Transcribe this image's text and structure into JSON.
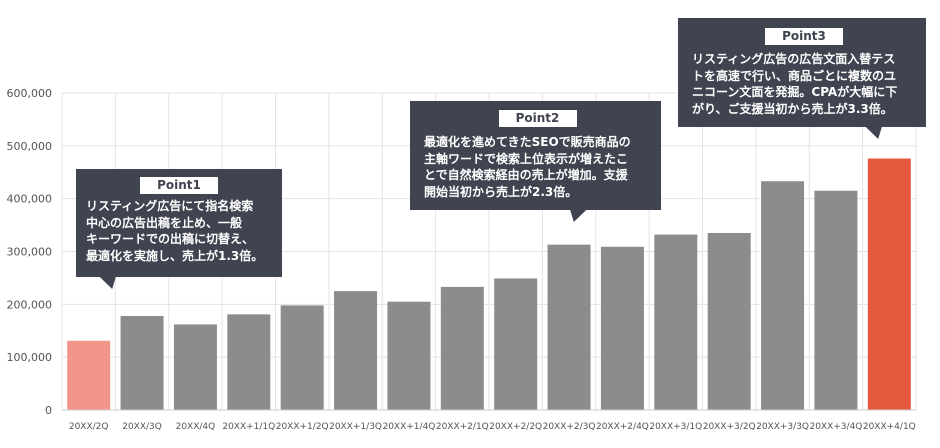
{
  "chart_data": {
    "type": "bar",
    "categories": [
      "20XX/2Q",
      "20XX/3Q",
      "20XX/4Q",
      "20XX+1/1Q",
      "20XX+1/2Q",
      "20XX+1/3Q",
      "20XX+1/4Q",
      "20XX+2/1Q",
      "20XX+2/2Q",
      "20XX+2/3Q",
      "20XX+2/4Q",
      "20XX+3/1Q",
      "20XX+3/2Q",
      "20XX+3/3Q",
      "20XX+3/4Q",
      "20XX+4/1Q"
    ],
    "values": [
      131000,
      178000,
      162000,
      181000,
      198000,
      225000,
      205000,
      233000,
      249000,
      313000,
      309000,
      332000,
      335000,
      433000,
      415000,
      476000
    ],
    "ylim": [
      0,
      600000
    ],
    "yticks": [
      0,
      100000,
      200000,
      300000,
      400000,
      500000,
      600000
    ],
    "ytick_labels": [
      "0",
      "100,000",
      "200,000",
      "300,000",
      "400,000",
      "500,000",
      "600,000"
    ],
    "colors": {
      "first": "#f2958a",
      "default": "#8c8c8c",
      "last": "#e55a3f",
      "grid": "#e3e3e3"
    },
    "grid": true
  },
  "callouts": [
    {
      "tag": "Point1",
      "text": "リスティング広告にて指名検索\n中心の広告出稿を止め、一般\nキーワードでの出稿に切替え、\n最適化を実施し、売上が1.3倍。"
    },
    {
      "tag": "Point2",
      "text": "最適化を進めてきたSEOで販売商品の\n主軸ワードで検索上位表示が増えたこ\nとで自然検索経由の売上が増加。支援\n開始当初から売上が2.3倍。"
    },
    {
      "tag": "Point3",
      "text": "リスティング広告の広告文面入替テス\nトを高速で行い、商品ごとに複数のユ\nニコーン文面を発掘。CPAが大幅に下\nがり、ご支援当初から売上が3.3倍。"
    }
  ]
}
